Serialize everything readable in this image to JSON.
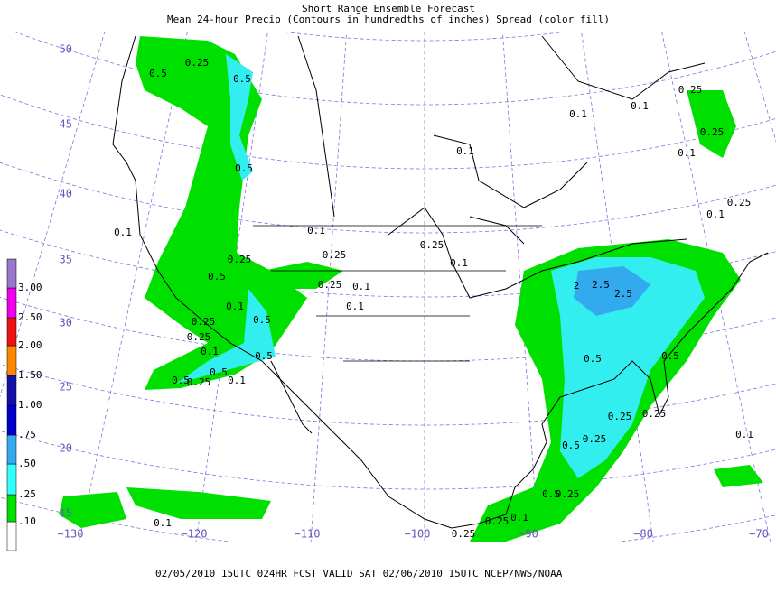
{
  "header": {
    "title": "Short Range Ensemble Forecast",
    "subtitle": "Mean 24-hour Precip (Contours in hundredths of inches) Spread (color fill)"
  },
  "colorbar": {
    "labels": [
      ".10",
      ".25",
      ".50",
      ".75",
      "1.00",
      "1.50",
      "2.00",
      "2.50",
      "3.00"
    ]
  },
  "latitude_labels": [
    "50",
    "45",
    "40",
    "35",
    "30",
    "25",
    "20",
    "15"
  ],
  "longitude_labels": [
    "−130",
    "−120",
    "−110",
    "−100",
    "−90",
    "−80",
    "−70"
  ],
  "contour_labels": [
    "0.25",
    "0.5",
    "0.5",
    "0.5",
    "0.1",
    "0.25",
    "0.5",
    "0.1",
    "0.5",
    "0.25",
    "0.25",
    "0.1",
    "0.5",
    "0.5",
    "0.5",
    "0.25",
    "0.1",
    "0.1",
    "0.25",
    "0.25",
    "0.1",
    "0.1",
    "0.1",
    "0.25",
    "0.1",
    "0.25",
    "0.1",
    "0.1",
    "0.25",
    "0.1",
    "0.25",
    "0.1",
    "2",
    "2.5",
    "2.5",
    "0.5",
    "0.5",
    "0.25",
    "0.25",
    "0.5",
    "0.25",
    "0.1",
    "0.25",
    "0.5",
    "0.1",
    "0.25",
    "0.25",
    "0.1"
  ],
  "footer": "02/05/2010 15UTC 024HR FCST VALID SAT 02/06/2010 15UTC   NCEP/NWS/NOAA"
}
